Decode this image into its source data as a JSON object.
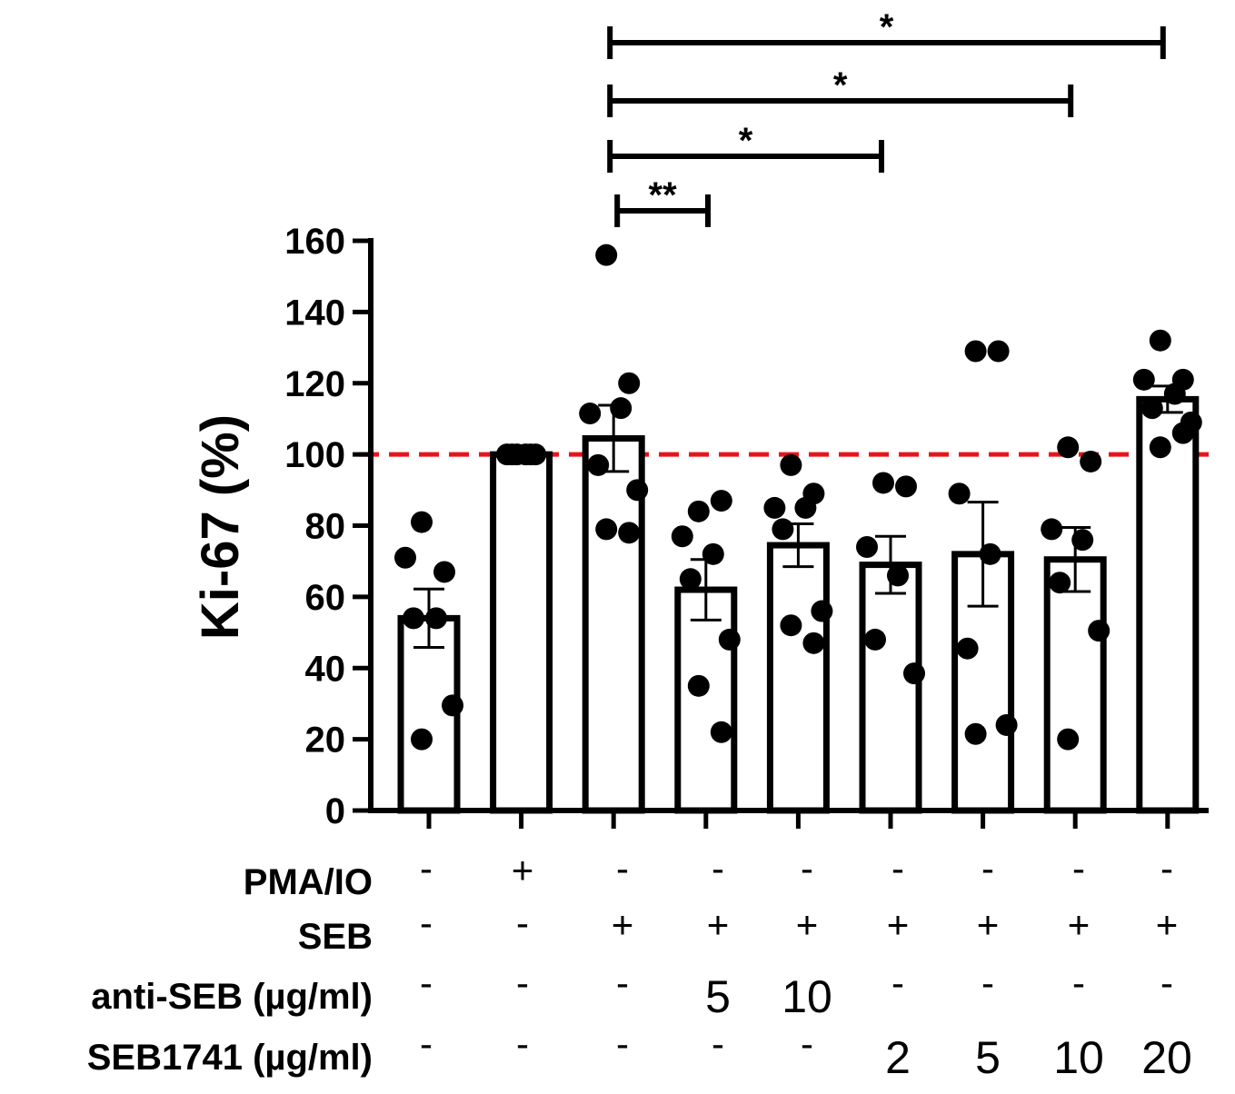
{
  "chart_data": {
    "type": "bar",
    "ylabel": "Ki-67 (%)",
    "ylim": [
      0,
      160
    ],
    "yticks": [
      0,
      20,
      40,
      60,
      80,
      100,
      120,
      140,
      160
    ],
    "reference_line": {
      "value": 100,
      "style": "dashed",
      "color": "#e8141b"
    },
    "colors": {
      "bar_fill": "#ffffff",
      "bar_stroke": "#000000",
      "point": "#000000"
    },
    "values": [
      54,
      100,
      104.5,
      62,
      74.5,
      69,
      72,
      70.5,
      115.5
    ],
    "errors": [
      8.2,
      0,
      9.3,
      8.5,
      6.0,
      8.0,
      14.6,
      9.0,
      3.7
    ],
    "points": [
      [
        81,
        67,
        71,
        54,
        54,
        29.5,
        20
      ],
      [
        100,
        100,
        100,
        100,
        100,
        100
      ],
      [
        156,
        120,
        111.5,
        113,
        97,
        90,
        79,
        78
      ],
      [
        84,
        87,
        77,
        72,
        65,
        48,
        35,
        22
      ],
      [
        97,
        89,
        85,
        85,
        79,
        56,
        52,
        47
      ],
      [
        92,
        91,
        74,
        66,
        48,
        38.5
      ],
      [
        129,
        129,
        89,
        72,
        45.5,
        24,
        21.5
      ],
      [
        102,
        98,
        79,
        76,
        64,
        50.5,
        20
      ],
      [
        132,
        121,
        121,
        117,
        113,
        109,
        102,
        106
      ]
    ],
    "conditions": {
      "rows": [
        {
          "label": "PMA/IO",
          "cells": [
            "-",
            "+",
            "-",
            "-",
            "-",
            "-",
            "-",
            "-",
            "-"
          ]
        },
        {
          "label": "SEB",
          "cells": [
            "-",
            "-",
            "+",
            "+",
            "+",
            "+",
            "+",
            "+",
            "+"
          ]
        },
        {
          "label": "anti-SEB (µg/ml)",
          "cells": [
            "-",
            "-",
            "-",
            "5",
            "10",
            "-",
            "-",
            "-",
            "-"
          ]
        },
        {
          "label": "SEB1741 (µg/ml)",
          "cells": [
            "-",
            "-",
            "-",
            "-",
            "-",
            "2",
            "5",
            "10",
            "20"
          ]
        }
      ]
    },
    "significance": [
      {
        "from": 2,
        "to": 8,
        "label": "*"
      },
      {
        "from": 2,
        "to": 7,
        "label": "*"
      },
      {
        "from": 2,
        "to": 5,
        "label": "*"
      },
      {
        "from": 2,
        "to": 3,
        "label": "**"
      }
    ]
  }
}
